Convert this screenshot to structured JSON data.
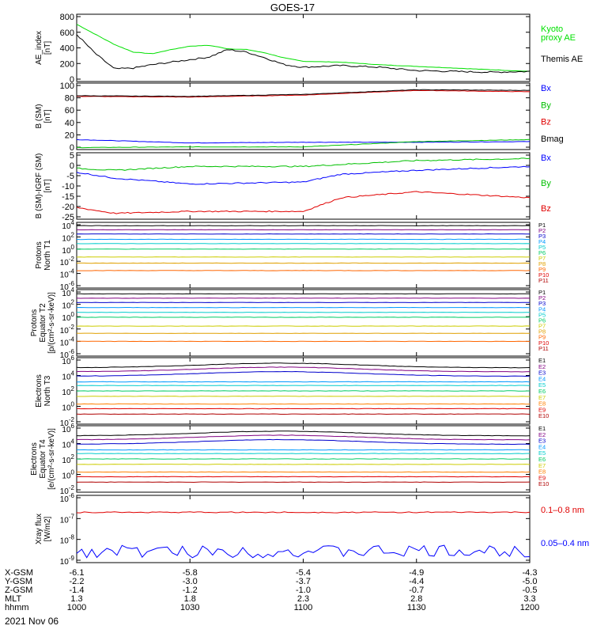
{
  "title": "GOES-17",
  "date": "2021 Nov 06",
  "colors": {
    "black": "#000000",
    "green": "#00e000",
    "blue": "#0000ff",
    "red": "#e00000",
    "orange": "#ff8000",
    "yellow": "#e0e000"
  },
  "panels": [
    {
      "ylabel": [
        "AE_index",
        "[nT]"
      ],
      "ticks": [
        "800",
        "600",
        "400",
        "200",
        "0"
      ],
      "legend": [
        {
          "label": "Kyoto",
          "color": "#00e000"
        },
        {
          "label": "proxy AE",
          "color": "#00e000"
        },
        {
          "label": "Themis AE",
          "color": "#000000"
        }
      ]
    },
    {
      "ylabel": [
        "B (SM)",
        "[nT]"
      ],
      "ticks": [
        "100",
        "80",
        "60",
        "40",
        "20",
        "0"
      ],
      "legend": [
        {
          "label": "Bx",
          "color": "#0000ff"
        },
        {
          "label": "By",
          "color": "#00c000"
        },
        {
          "label": "Bz",
          "color": "#e00000"
        },
        {
          "label": "Bmag",
          "color": "#000000"
        }
      ]
    },
    {
      "ylabel": [
        "B (SM)-IGRF (SM)",
        "[nT]"
      ],
      "ticks": [
        "5",
        "0",
        "-5",
        "-10",
        "-15",
        "-20",
        "-25"
      ],
      "legend": [
        {
          "label": "Bx",
          "color": "#0000ff"
        },
        {
          "label": "By",
          "color": "#00c000"
        },
        {
          "label": "Bz",
          "color": "#e00000"
        }
      ]
    },
    {
      "ylabel": [
        "Protons",
        "North T1"
      ],
      "ticks": [
        {
          "b": "10",
          "e": "4"
        },
        {
          "b": "10",
          "e": "2"
        },
        {
          "b": "10",
          "e": "0"
        },
        {
          "b": "10",
          "e": "-2"
        },
        {
          "b": "10",
          "e": "-4"
        },
        {
          "b": "10",
          "e": "-6"
        }
      ],
      "legend": [
        "P1",
        "P2",
        "P3",
        "P4",
        "P5",
        "P6",
        "P7",
        "P8",
        "P9",
        "P10",
        "P11"
      ]
    },
    {
      "ylabel": [
        "Protons",
        "Equator T2",
        "[p/(cm²-s-sr-keV)]"
      ],
      "ticks": [
        {
          "b": "10",
          "e": "4"
        },
        {
          "b": "10",
          "e": "2"
        },
        {
          "b": "10",
          "e": "0"
        },
        {
          "b": "10",
          "e": "-2"
        },
        {
          "b": "10",
          "e": "-4"
        },
        {
          "b": "10",
          "e": "-6"
        }
      ],
      "legend": [
        "P1",
        "P2",
        "P3",
        "P4",
        "P5",
        "P6",
        "P7",
        "P8",
        "P9",
        "P10",
        "P11"
      ]
    },
    {
      "ylabel": [
        "Electrons",
        "North T3"
      ],
      "ticks": [
        {
          "b": "10",
          "e": "6"
        },
        {
          "b": "10",
          "e": "4"
        },
        {
          "b": "10",
          "e": "2"
        },
        {
          "b": "10",
          "e": "0"
        },
        {
          "b": "10",
          "e": "-2"
        }
      ],
      "legend": [
        "E1",
        "E2",
        "E3",
        "E4",
        "E5",
        "E6",
        "E7",
        "E8",
        "E9",
        "E10"
      ]
    },
    {
      "ylabel": [
        "Electrons",
        "Equator T4",
        "[e/(cm²-s-sr-keV)]"
      ],
      "ticks": [
        {
          "b": "10",
          "e": "6"
        },
        {
          "b": "10",
          "e": "4"
        },
        {
          "b": "10",
          "e": "2"
        },
        {
          "b": "10",
          "e": "0"
        },
        {
          "b": "10",
          "e": "-2"
        }
      ],
      "legend": [
        "E1",
        "E2",
        "E3",
        "E4",
        "E5",
        "E6",
        "E7",
        "E8",
        "E9",
        "E10"
      ]
    },
    {
      "ylabel": [
        "Xray flux",
        "[W/m2]"
      ],
      "ticks": [
        {
          "b": "10",
          "e": "-6"
        },
        {
          "b": "10",
          "e": "-7"
        },
        {
          "b": "10",
          "e": "-8"
        },
        {
          "b": "10",
          "e": "-9"
        }
      ],
      "legend": [
        {
          "label": "0.1–0.8 nm",
          "color": "#e00000"
        },
        {
          "label": "0.05–0.4 nm",
          "color": "#0000ff"
        }
      ]
    }
  ],
  "channel_colors": {
    "P": [
      "#000000",
      "#800080",
      "#0000cc",
      "#0099ff",
      "#00cccc",
      "#00cc66",
      "#cccc00",
      "#e0a000",
      "#ff6600",
      "#e00000",
      "#b00000"
    ],
    "E": [
      "#000000",
      "#800080",
      "#0000cc",
      "#0099ff",
      "#00cccc",
      "#00cc66",
      "#cccc00",
      "#ff8000",
      "#e00000",
      "#b00000"
    ]
  },
  "xaxis": {
    "row_labels": [
      "X-GSM",
      "Y-GSM",
      "Z-GSM",
      "MLT",
      "hhmm"
    ],
    "columns": [
      {
        "values": [
          "-6.1",
          "-2.2",
          "-1.4",
          "1.3",
          "1000"
        ]
      },
      {
        "values": [
          "-5.8",
          "-3.0",
          "-1.2",
          "1.8",
          "1030"
        ]
      },
      {
        "values": [
          "-5.4",
          "-3.7",
          "-1.0",
          "2.3",
          "1100"
        ]
      },
      {
        "values": [
          "-4.9",
          "-4.4",
          "-0.7",
          "2.8",
          "1130"
        ]
      },
      {
        "values": [
          "-4.3",
          "-5.0",
          "-0.5",
          "3.3",
          "1200"
        ]
      }
    ]
  },
  "chart_data": {
    "type": "line",
    "title": "GOES-17",
    "x_unit": "hhmm",
    "x_range": [
      "1000",
      "1200"
    ],
    "panels": [
      {
        "ylim": [
          0,
          800
        ],
        "series": [
          {
            "name": "Kyoto proxy AE",
            "x": [
              "1000",
              "1005",
              "1010",
              "1015",
              "1020",
              "1025",
              "1030",
              "1035",
              "1040",
              "1045",
              "1050",
              "1055",
              "1100",
              "1110",
              "1120",
              "1130",
              "1140",
              "1150",
              "1200"
            ],
            "values": [
              680,
              560,
              440,
              350,
              330,
              380,
              420,
              430,
              390,
              380,
              340,
              280,
              240,
              230,
              200,
              180,
              160,
              140,
              120
            ]
          },
          {
            "name": "Themis AE",
            "x": [
              "1000",
              "1005",
              "1010",
              "1015",
              "1020",
              "1025",
              "1030",
              "1035",
              "1040",
              "1045",
              "1050",
              "1055",
              "1100",
              "1110",
              "1120",
              "1130",
              "1140",
              "1150",
              "1200"
            ],
            "values": [
              560,
              330,
              150,
              160,
              200,
              230,
              260,
              290,
              380,
              350,
              280,
              200,
              170,
              190,
              170,
              130,
              120,
              110,
              120
            ]
          }
        ]
      },
      {
        "ylim": [
          0,
          100
        ],
        "series": [
          {
            "name": "Bx",
            "x": [
              "1000",
              "1030",
              "1100",
              "1130",
              "1200"
            ],
            "values": [
              15,
              10,
              11,
              11,
              12
            ]
          },
          {
            "name": "By",
            "x": [
              "1000",
              "1030",
              "1100",
              "1130",
              "1200"
            ],
            "values": [
              3,
              4,
              4,
              12,
              15
            ]
          },
          {
            "name": "Bz",
            "x": [
              "1000",
              "1030",
              "1100",
              "1130",
              "1200"
            ],
            "values": [
              80,
              79,
              82,
              89,
              87
            ]
          },
          {
            "name": "Bmag",
            "x": [
              "1000",
              "1030",
              "1100",
              "1130",
              "1200"
            ],
            "values": [
              81,
              80,
              83,
              90,
              89
            ]
          }
        ]
      },
      {
        "ylim": [
          -27,
          7
        ],
        "series": [
          {
            "name": "Bx",
            "x": [
              "1000",
              "1010",
              "1030",
              "1100",
              "1110",
              "1130",
              "1200"
            ],
            "values": [
              -3,
              -6,
              -9,
              -8,
              -4,
              -2,
              0
            ]
          },
          {
            "name": "By",
            "x": [
              "1000",
              "1010",
              "1030",
              "1100",
              "1110",
              "1130",
              "1200"
            ],
            "values": [
              -1,
              -2,
              0,
              0,
              1,
              3,
              4
            ]
          },
          {
            "name": "Bz",
            "x": [
              "1000",
              "1010",
              "1030",
              "1100",
              "1110",
              "1130",
              "1200"
            ],
            "values": [
              -21,
              -24,
              -23,
              -23,
              -16,
              -13,
              -16
            ]
          }
        ]
      },
      {
        "scale": "log",
        "ylim": [
          "1e-6",
          "1e4"
        ],
        "series": [
          {
            "name": "P1",
            "values": [
              7000
            ]
          },
          {
            "name": "P2",
            "values": [
              1500
            ]
          },
          {
            "name": "P3",
            "values": [
              300
            ]
          },
          {
            "name": "P4",
            "values": [
              40
            ]
          },
          {
            "name": "P5",
            "values": [
              8
            ]
          },
          {
            "name": "P6",
            "values": [
              1
            ]
          },
          {
            "name": "P7",
            "values": [
              0.05
            ]
          },
          {
            "name": "P8",
            "values": [
              0.005
            ]
          },
          {
            "name": "P9",
            "values": [
              0.0003
            ]
          }
        ]
      },
      {
        "scale": "log",
        "ylim": [
          "1e-6",
          "1e4"
        ],
        "series": [
          {
            "name": "P1",
            "values": [
              5000
            ]
          },
          {
            "name": "P2",
            "values": [
              1000
            ]
          },
          {
            "name": "P3",
            "values": [
              200
            ]
          },
          {
            "name": "P4",
            "values": [
              30
            ]
          },
          {
            "name": "P5",
            "values": [
              5
            ]
          },
          {
            "name": "P6",
            "values": [
              0.8
            ]
          },
          {
            "name": "P7",
            "values": [
              0.03
            ]
          },
          {
            "name": "P8",
            "values": [
              0.002
            ]
          },
          {
            "name": "P9",
            "values": [
              0.0001
            ]
          }
        ]
      },
      {
        "scale": "log",
        "ylim": [
          "1e-2",
          "1e6"
        ],
        "series": [
          {
            "name": "E1",
            "values": [
              100000
            ]
          },
          {
            "name": "E2",
            "values": [
              30000
            ]
          },
          {
            "name": "E3",
            "values": [
              8000
            ]
          },
          {
            "name": "E4",
            "values": [
              1500
            ]
          },
          {
            "name": "E5",
            "values": [
              500
            ]
          },
          {
            "name": "E6",
            "values": [
              100
            ]
          },
          {
            "name": "E7",
            "values": [
              20
            ]
          },
          {
            "name": "E8",
            "values": [
              2
            ]
          },
          {
            "name": "E9",
            "values": [
              0.5
            ]
          },
          {
            "name": "E10",
            "values": [
              0.1
            ]
          }
        ]
      },
      {
        "scale": "log",
        "ylim": [
          "1e-2",
          "1e6"
        ],
        "series": [
          {
            "name": "E1",
            "values": [
              100000
            ]
          },
          {
            "name": "E2",
            "values": [
              30000
            ]
          },
          {
            "name": "E3",
            "values": [
              8000
            ]
          },
          {
            "name": "E4",
            "values": [
              1500
            ]
          },
          {
            "name": "E5",
            "values": [
              500
            ]
          },
          {
            "name": "E6",
            "values": [
              100
            ]
          },
          {
            "name": "E7",
            "values": [
              20
            ]
          },
          {
            "name": "E8",
            "values": [
              2
            ]
          },
          {
            "name": "E9",
            "values": [
              0.5
            ]
          },
          {
            "name": "E10",
            "values": [
              0.1
            ]
          }
        ]
      },
      {
        "scale": "log",
        "ylim": [
          "1e-9",
          "1e-6"
        ],
        "series": [
          {
            "name": "0.1–0.8 nm",
            "values": [
              2e-07
            ]
          },
          {
            "name": "0.05–0.4 nm",
            "values": [
              2e-09
            ]
          }
        ]
      }
    ]
  }
}
